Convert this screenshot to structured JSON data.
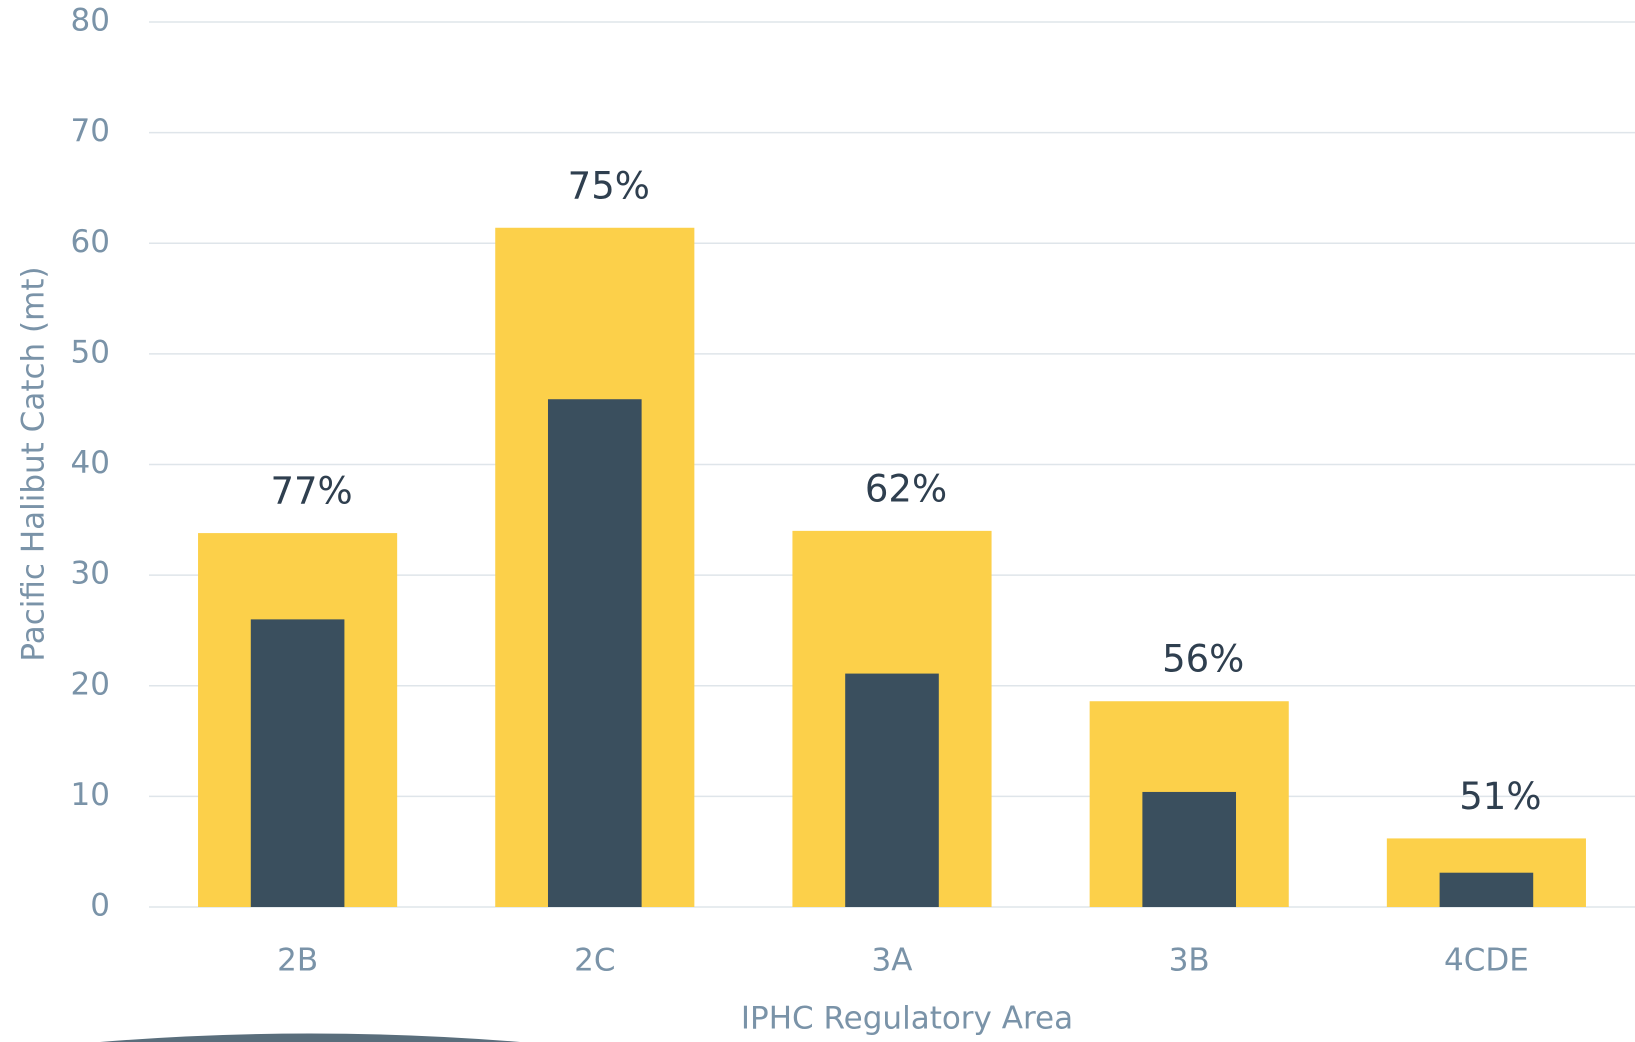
{
  "chart_data": {
    "type": "bar",
    "xlabel": "IPHC Regulatory Area",
    "ylabel": "Pacific Halibut Catch (mt)",
    "categories": [
      "2B",
      "2C",
      "3A",
      "3B",
      "4CDE"
    ],
    "series": [
      {
        "color": "#fcd04a",
        "values": [
          33.8,
          61.4,
          34.0,
          18.6,
          6.2
        ]
      },
      {
        "color": "#3a4f5e",
        "values": [
          26.0,
          45.9,
          21.1,
          10.4,
          3.1
        ]
      }
    ],
    "annotations": [
      "77%",
      "75%",
      "62%",
      "56%",
      "51%"
    ],
    "ylim": [
      0,
      80
    ],
    "yticks": [
      0,
      10,
      20,
      30,
      40,
      50,
      60,
      70,
      80
    ],
    "grid": true
  }
}
